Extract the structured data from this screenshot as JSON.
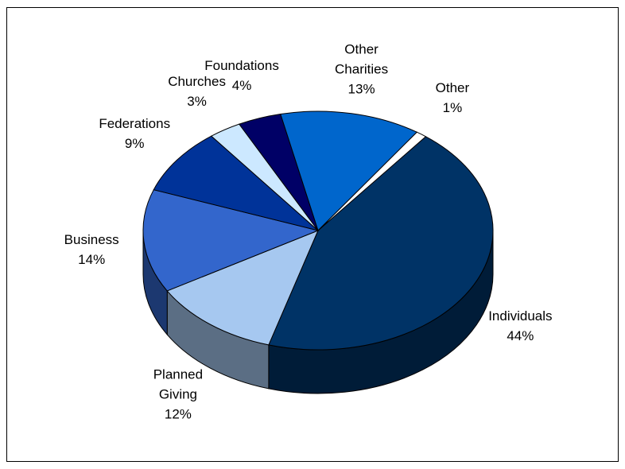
{
  "chart_data": {
    "type": "pie",
    "categories": [
      "Individuals",
      "Planned Giving",
      "Business",
      "Federations",
      "Churches",
      "Foundations",
      "Other Charities",
      "Other"
    ],
    "values": [
      44,
      12,
      14,
      9,
      3,
      4,
      13,
      1
    ],
    "value_labels": [
      "44%",
      "12%",
      "14%",
      "9%",
      "3%",
      "4%",
      "13%",
      "1%"
    ],
    "colors": [
      "#003366",
      "#a6c8f0",
      "#3366cc",
      "#003399",
      "#cce8ff",
      "#000066",
      "#0066cc",
      "#ffffff"
    ]
  }
}
